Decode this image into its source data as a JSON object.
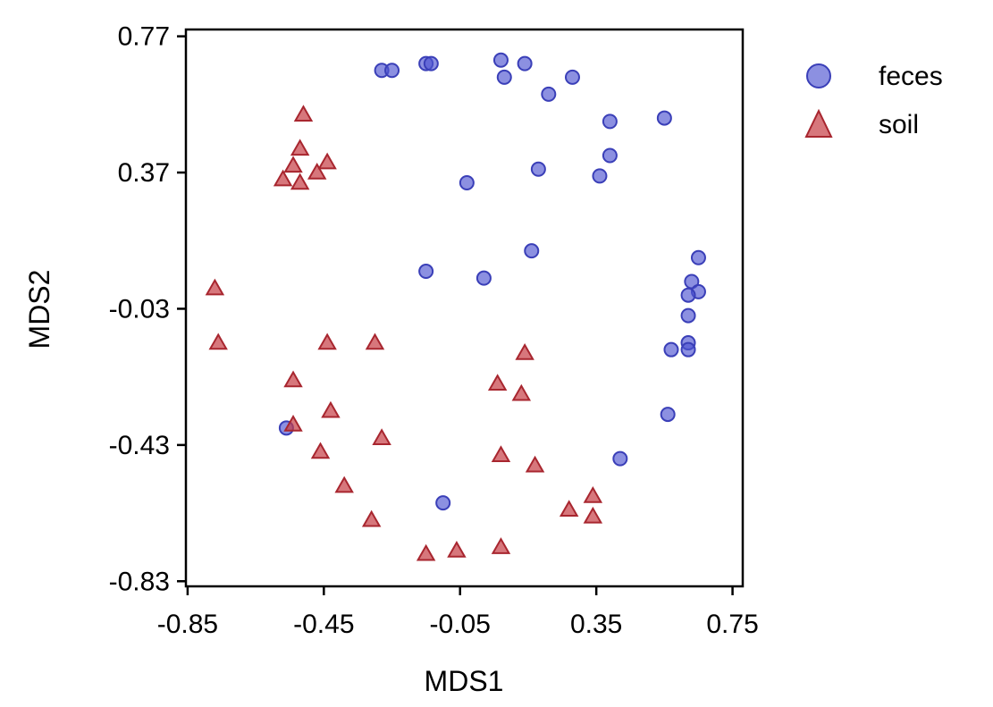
{
  "chart_data": {
    "type": "scatter",
    "title": "",
    "xlabel": "MDS1",
    "ylabel": "MDS2",
    "xlim": [
      -0.855,
      0.78
    ],
    "ylim": [
      -0.845,
      0.79
    ],
    "x_ticks": [
      -0.85,
      -0.45,
      -0.05,
      0.35,
      0.75
    ],
    "x_tick_labels": [
      "-0.85",
      "-0.45",
      "-0.05",
      "0.35",
      "0.75"
    ],
    "y_ticks": [
      0.77,
      0.37,
      -0.03,
      -0.43,
      -0.83
    ],
    "y_tick_labels": [
      "0.77",
      "0.37",
      "-0.03",
      "-0.43",
      "-0.83"
    ],
    "grid": false,
    "legend_position": "outside-right",
    "series": [
      {
        "name": "feces",
        "marker": "circle",
        "color": "#4f55d1",
        "edge_color": "#3a3fb8",
        "points": [
          [
            -0.28,
            0.67
          ],
          [
            -0.25,
            0.67
          ],
          [
            -0.15,
            0.69
          ],
          [
            -0.135,
            0.69
          ],
          [
            0.07,
            0.7
          ],
          [
            0.08,
            0.65
          ],
          [
            0.14,
            0.69
          ],
          [
            0.21,
            0.6
          ],
          [
            0.28,
            0.65
          ],
          [
            0.39,
            0.52
          ],
          [
            0.55,
            0.53
          ],
          [
            0.39,
            0.42
          ],
          [
            0.18,
            0.38
          ],
          [
            0.36,
            0.36
          ],
          [
            -0.03,
            0.34
          ],
          [
            0.16,
            0.14
          ],
          [
            -0.15,
            0.08
          ],
          [
            0.02,
            0.06
          ],
          [
            0.65,
            0.12
          ],
          [
            0.63,
            0.05
          ],
          [
            0.65,
            0.02
          ],
          [
            0.62,
            0.01
          ],
          [
            0.62,
            -0.05
          ],
          [
            0.62,
            -0.13
          ],
          [
            0.62,
            -0.15
          ],
          [
            0.57,
            -0.15
          ],
          [
            0.56,
            -0.34
          ],
          [
            0.42,
            -0.47
          ],
          [
            -0.1,
            -0.6
          ],
          [
            -0.56,
            -0.38
          ]
        ]
      },
      {
        "name": "soil",
        "marker": "triangle",
        "color": "#c63d45",
        "edge_color": "#a8262f",
        "points": [
          [
            -0.51,
            0.54
          ],
          [
            -0.52,
            0.44
          ],
          [
            -0.44,
            0.4
          ],
          [
            -0.54,
            0.39
          ],
          [
            -0.47,
            0.37
          ],
          [
            -0.57,
            0.35
          ],
          [
            -0.52,
            0.34
          ],
          [
            -0.77,
            0.03
          ],
          [
            -0.76,
            -0.13
          ],
          [
            -0.44,
            -0.13
          ],
          [
            -0.3,
            -0.13
          ],
          [
            0.14,
            -0.16
          ],
          [
            -0.54,
            -0.24
          ],
          [
            0.06,
            -0.25
          ],
          [
            0.13,
            -0.28
          ],
          [
            -0.43,
            -0.33
          ],
          [
            -0.54,
            -0.37
          ],
          [
            -0.28,
            -0.41
          ],
          [
            -0.46,
            -0.45
          ],
          [
            0.07,
            -0.46
          ],
          [
            0.17,
            -0.49
          ],
          [
            -0.39,
            -0.55
          ],
          [
            0.34,
            -0.58
          ],
          [
            0.27,
            -0.62
          ],
          [
            0.34,
            -0.64
          ],
          [
            -0.31,
            -0.65
          ],
          [
            -0.15,
            -0.75
          ],
          [
            -0.06,
            -0.74
          ],
          [
            0.07,
            -0.73
          ]
        ]
      }
    ]
  }
}
